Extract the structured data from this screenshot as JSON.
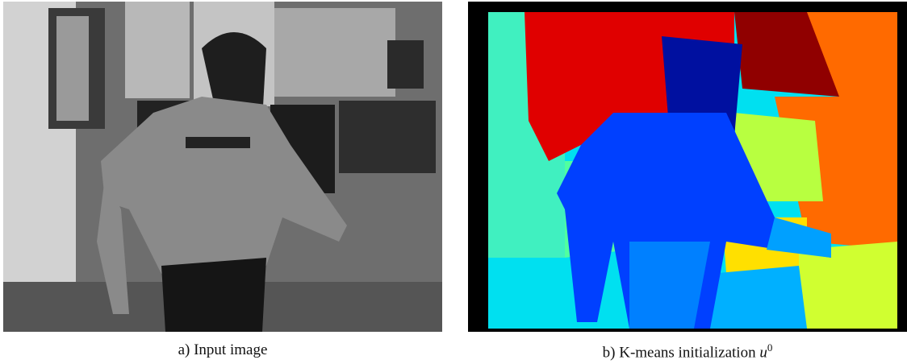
{
  "captions": [
    {
      "text": "a) Input image"
    },
    {
      "text": "b) K-means initialization",
      "math": "u",
      "superscript": "0"
    }
  ]
}
